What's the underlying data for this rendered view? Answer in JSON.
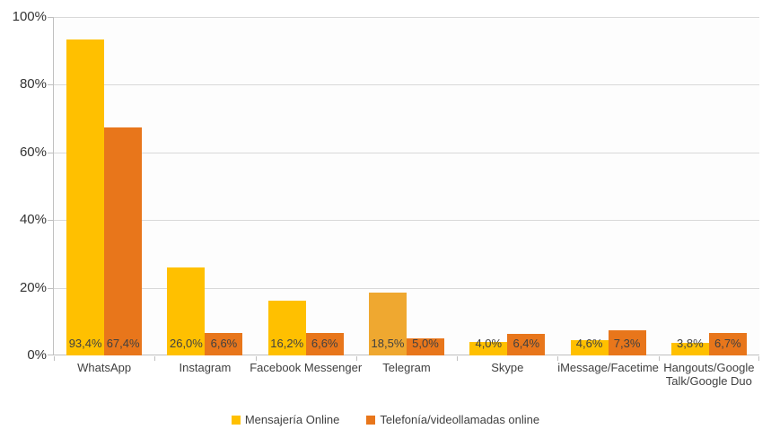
{
  "chart_data": {
    "type": "bar",
    "title": "",
    "categories": [
      "WhatsApp",
      "Instagram",
      "Facebook Messenger",
      "Telegram",
      "Skype",
      "iMessage/Facetime",
      "Hangouts/Google Talk/Google Duo"
    ],
    "series": [
      {
        "name": "Mensajería Online",
        "color": "#FFC000",
        "values": [
          93.4,
          26.0,
          16.2,
          18.5,
          4.0,
          4.6,
          3.8
        ],
        "labels": [
          "93,4%",
          "26,0%",
          "16,2%",
          "18,5%",
          "4,0%",
          "4,6%",
          "3,8%"
        ],
        "bar_colors": [
          "#FFC000",
          "#FFC000",
          "#FFC000",
          "#EFA830",
          "#FFC000",
          "#FFC000",
          "#FFC000"
        ]
      },
      {
        "name": "Telefonía/videollamadas online",
        "color": "#E8761B",
        "values": [
          67.4,
          6.6,
          6.6,
          5.0,
          6.4,
          7.3,
          6.7
        ],
        "labels": [
          "67,4%",
          "6,6%",
          "6,6%",
          "5,0%",
          "6,4%",
          "7,3%",
          "6,7%"
        ]
      }
    ],
    "y_axis": {
      "min": 0,
      "max": 100,
      "tick_values": [
        0,
        20,
        40,
        60,
        80,
        100
      ],
      "tick_labels": [
        "0%",
        "20%",
        "40%",
        "60%",
        "80%",
        "100%"
      ]
    },
    "grid": true,
    "legend_position": "bottom",
    "colors": {
      "series1": "#FFC000",
      "series1_telegram": "#EFA830",
      "series2": "#E8761B",
      "gridline": "#D9D9D9",
      "axis": "#BFBFBF",
      "label_text": "#404040",
      "tick_text": "#333333",
      "plot_background": "#FDFDFD"
    }
  }
}
